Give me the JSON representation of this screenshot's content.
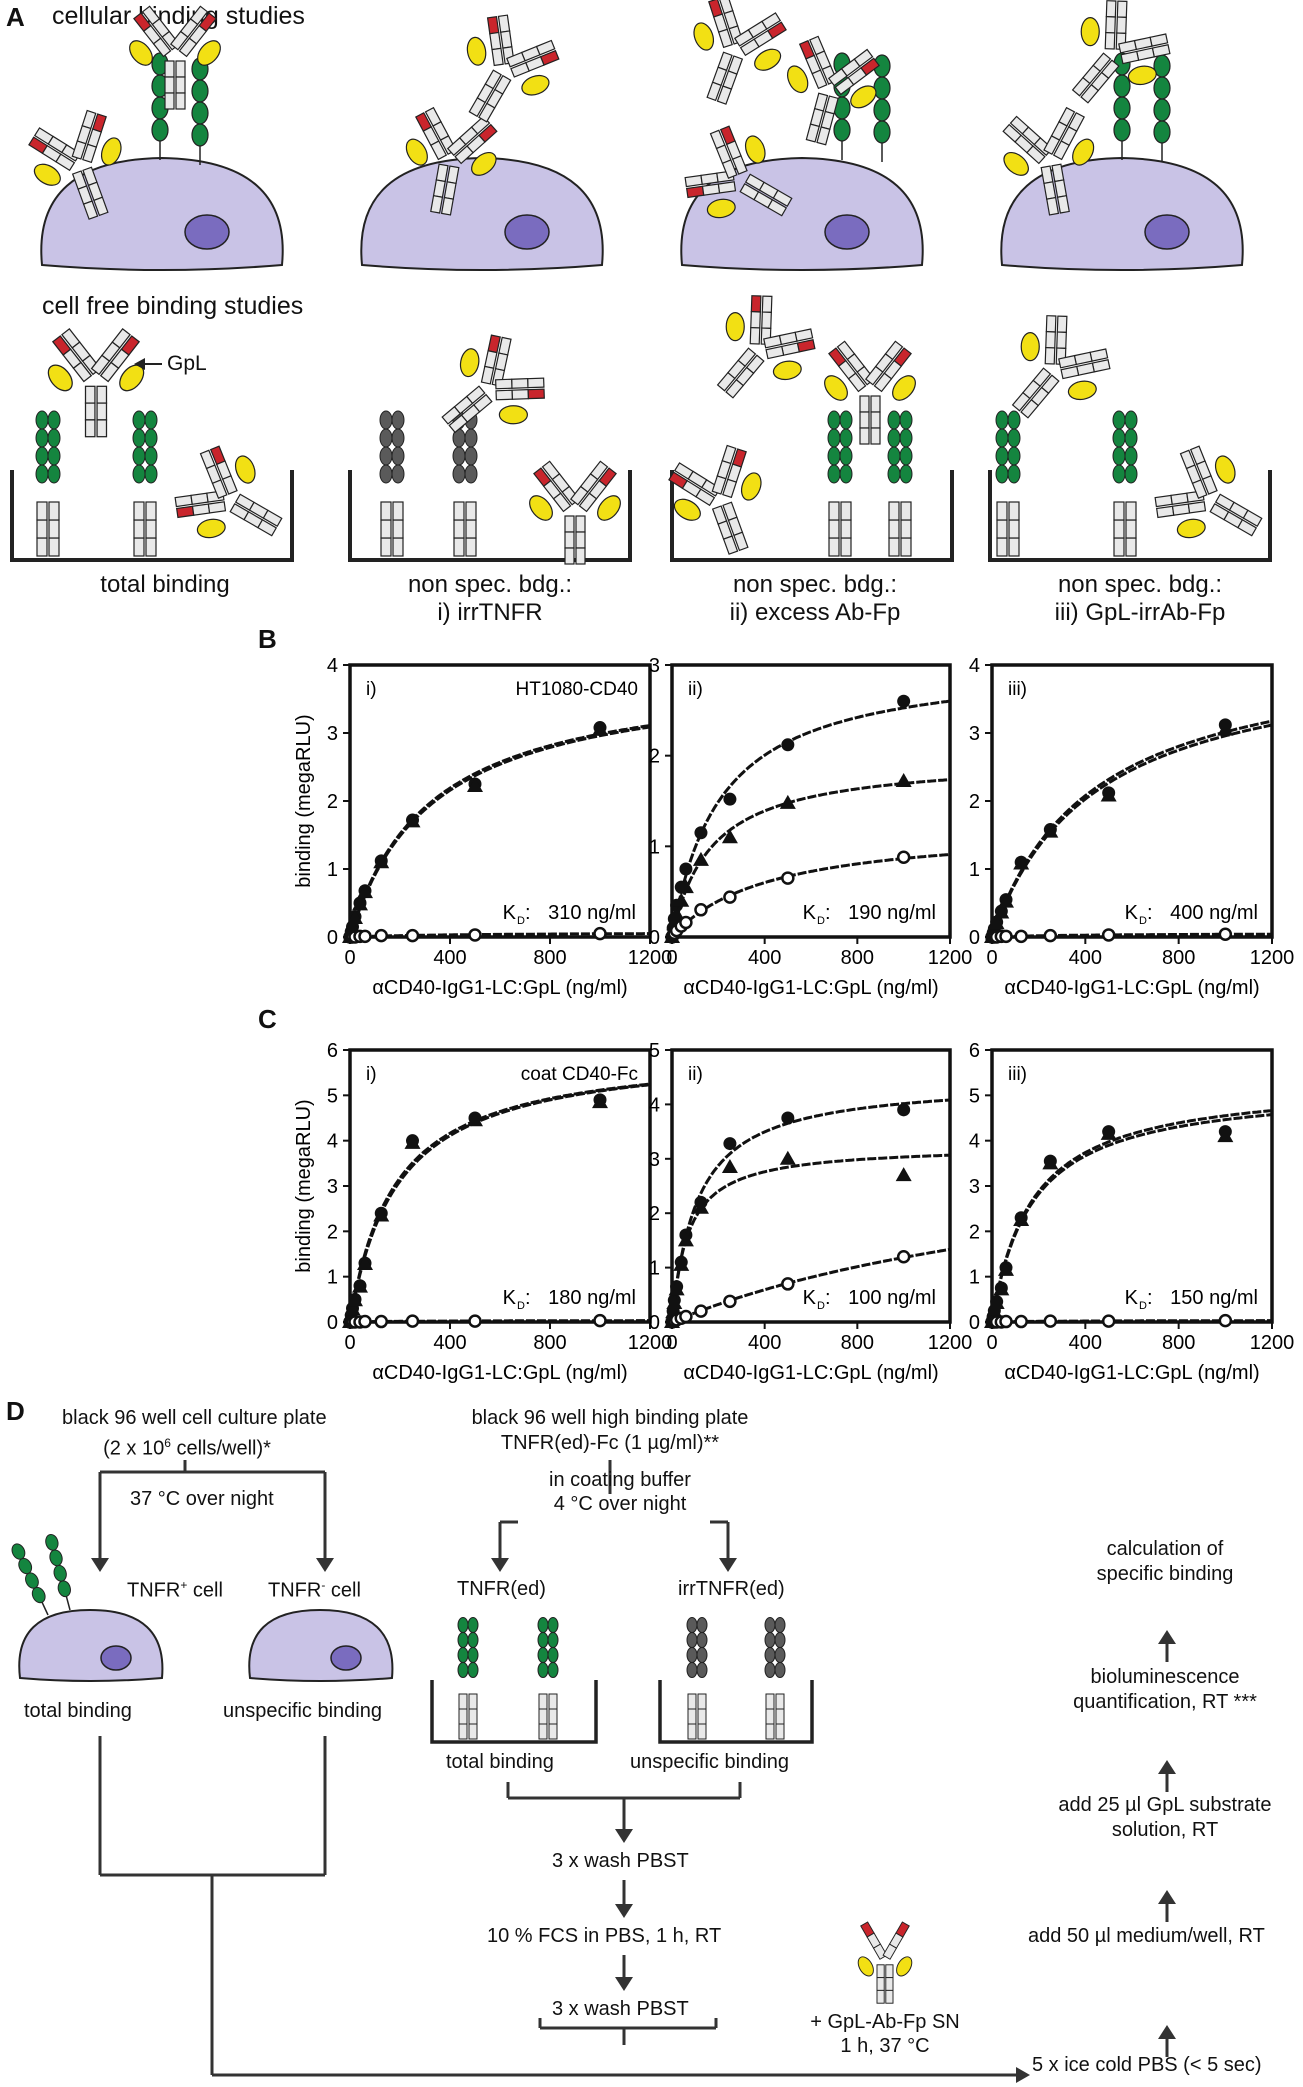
{
  "panelA": {
    "letter": "A",
    "cellular_title": "cellular binding studies",
    "cellfree_title": "cell free binding studies",
    "gpl_label": "GpL",
    "captions": [
      {
        "line1": "total binding",
        "line2": ""
      },
      {
        "line1": "non spec. bdg.:",
        "line2": "i) irrTNFR"
      },
      {
        "line1": "non spec. bdg.:",
        "line2": "ii) excess Ab-Fp"
      },
      {
        "line1": "non spec. bdg.:",
        "line2": "iii) GpL-irrAb-Fp"
      }
    ]
  },
  "panelB": {
    "letter": "B"
  },
  "panelC": {
    "letter": "C"
  },
  "chart_data": [
    {
      "id": "B-i",
      "type": "scatter",
      "panel_label": "i)",
      "annotation": "HT1080-CD40",
      "kd": "310 ng/ml",
      "xlabel": "αCD40-IgG1-LC:GpL (ng/ml)",
      "ylabel": "binding (megaRLU)",
      "xlim": [
        0,
        1200
      ],
      "ylim": [
        0,
        4
      ],
      "xticks": [
        0,
        400,
        800,
        1200
      ],
      "yticks": [
        0,
        1,
        2,
        3,
        4
      ],
      "series": [
        {
          "marker": "filled-circle",
          "x": [
            0,
            5,
            10,
            20,
            40,
            60,
            125,
            250,
            500,
            1000
          ],
          "y": [
            0,
            0.08,
            0.15,
            0.3,
            0.5,
            0.68,
            1.12,
            1.72,
            2.25,
            3.08
          ]
        },
        {
          "marker": "filled-triangle",
          "x": [
            0,
            5,
            10,
            20,
            40,
            60,
            125,
            250,
            500,
            1000
          ],
          "y": [
            0,
            0.07,
            0.14,
            0.28,
            0.48,
            0.66,
            1.1,
            1.7,
            2.22,
            3.05
          ]
        },
        {
          "marker": "open-circle",
          "x": [
            0,
            5,
            10,
            20,
            40,
            60,
            125,
            250,
            500,
            1000
          ],
          "y": [
            0,
            0,
            0,
            0,
            0.01,
            0.01,
            0.02,
            0.02,
            0.03,
            0.05
          ]
        }
      ]
    },
    {
      "id": "B-ii",
      "type": "scatter",
      "panel_label": "ii)",
      "annotation": "",
      "kd": "190 ng/ml",
      "xlabel": "αCD40-IgG1-LC:GpL (ng/ml)",
      "ylabel": "",
      "xlim": [
        0,
        1200
      ],
      "ylim": [
        0,
        3
      ],
      "xticks": [
        0,
        400,
        800,
        1200
      ],
      "yticks": [
        0,
        1,
        2,
        3
      ],
      "series": [
        {
          "marker": "filled-circle",
          "x": [
            0,
            5,
            10,
            20,
            40,
            60,
            125,
            250,
            500,
            1000
          ],
          "y": [
            0,
            0.1,
            0.2,
            0.35,
            0.55,
            0.75,
            1.15,
            1.52,
            2.12,
            2.6
          ]
        },
        {
          "marker": "filled-triangle",
          "x": [
            0,
            5,
            10,
            20,
            40,
            60,
            125,
            250,
            500,
            1000
          ],
          "y": [
            0,
            0.07,
            0.14,
            0.25,
            0.4,
            0.55,
            0.85,
            1.1,
            1.48,
            1.72
          ]
        },
        {
          "marker": "open-circle",
          "x": [
            0,
            5,
            10,
            20,
            40,
            60,
            125,
            250,
            500,
            1000
          ],
          "y": [
            0,
            0.02,
            0.04,
            0.07,
            0.12,
            0.16,
            0.3,
            0.44,
            0.65,
            0.88
          ]
        }
      ]
    },
    {
      "id": "B-iii",
      "type": "scatter",
      "panel_label": "iii)",
      "annotation": "",
      "kd": "400 ng/ml",
      "xlabel": "αCD40-IgG1-LC:GpL (ng/ml)",
      "ylabel": "",
      "xlim": [
        0,
        1200
      ],
      "ylim": [
        0,
        4
      ],
      "xticks": [
        0,
        400,
        800,
        1200
      ],
      "yticks": [
        0,
        1,
        2,
        3,
        4
      ],
      "series": [
        {
          "marker": "filled-circle",
          "x": [
            0,
            5,
            10,
            20,
            40,
            60,
            125,
            250,
            500,
            1000
          ],
          "y": [
            0,
            0.06,
            0.12,
            0.22,
            0.38,
            0.55,
            1.1,
            1.58,
            2.12,
            3.12
          ]
        },
        {
          "marker": "filled-triangle",
          "x": [
            0,
            5,
            10,
            20,
            40,
            60,
            125,
            250,
            500,
            1000
          ],
          "y": [
            0,
            0.05,
            0.11,
            0.2,
            0.36,
            0.52,
            1.08,
            1.55,
            2.08,
            3.05
          ]
        },
        {
          "marker": "open-circle",
          "x": [
            0,
            5,
            10,
            20,
            40,
            60,
            125,
            250,
            500,
            1000
          ],
          "y": [
            0,
            0,
            0,
            0,
            0.01,
            0.01,
            0.01,
            0.02,
            0.03,
            0.04
          ]
        }
      ]
    },
    {
      "id": "C-i",
      "type": "scatter",
      "panel_label": "i)",
      "annotation": "coat CD40-Fc",
      "kd": "180 ng/ml",
      "xlabel": "αCD40-IgG1-LC:GpL (ng/ml)",
      "ylabel": "binding (megaRLU)",
      "xlim": [
        0,
        1200
      ],
      "ylim": [
        0,
        6
      ],
      "xticks": [
        0,
        400,
        800,
        1200
      ],
      "yticks": [
        0,
        1,
        2,
        3,
        4,
        5,
        6
      ],
      "series": [
        {
          "marker": "filled-circle",
          "x": [
            0,
            5,
            10,
            20,
            40,
            60,
            125,
            250,
            500,
            1000
          ],
          "y": [
            0,
            0.15,
            0.3,
            0.5,
            0.8,
            1.3,
            2.4,
            4.0,
            4.5,
            4.9
          ]
        },
        {
          "marker": "filled-triangle",
          "x": [
            0,
            5,
            10,
            20,
            40,
            60,
            125,
            250,
            500,
            1000
          ],
          "y": [
            0,
            0.14,
            0.28,
            0.48,
            0.78,
            1.28,
            2.35,
            3.95,
            4.45,
            4.85
          ]
        },
        {
          "marker": "open-circle",
          "x": [
            0,
            5,
            10,
            20,
            40,
            60,
            125,
            250,
            500,
            1000
          ],
          "y": [
            0,
            0,
            0,
            0,
            0,
            0.01,
            0.01,
            0.02,
            0.02,
            0.03
          ]
        }
      ]
    },
    {
      "id": "C-ii",
      "type": "scatter",
      "panel_label": "ii)",
      "annotation": "",
      "kd": "100 ng/ml",
      "xlabel": "αCD40-IgG1-LC:GpL (ng/ml)",
      "ylabel": "",
      "xlim": [
        0,
        1200
      ],
      "ylim": [
        0,
        5
      ],
      "xticks": [
        0,
        400,
        800,
        1200
      ],
      "yticks": [
        0,
        1,
        2,
        3,
        4,
        5
      ],
      "series": [
        {
          "marker": "filled-circle",
          "x": [
            0,
            5,
            10,
            20,
            40,
            60,
            125,
            250,
            500,
            1000
          ],
          "y": [
            0,
            0.2,
            0.4,
            0.65,
            1.1,
            1.6,
            2.2,
            3.28,
            3.75,
            3.9
          ]
        },
        {
          "marker": "filled-triangle",
          "x": [
            0,
            5,
            10,
            20,
            40,
            60,
            125,
            250,
            500,
            1000
          ],
          "y": [
            0,
            0.18,
            0.35,
            0.6,
            1.05,
            1.5,
            2.1,
            2.85,
            3.0,
            2.7
          ]
        },
        {
          "marker": "open-circle",
          "x": [
            0,
            5,
            10,
            20,
            40,
            60,
            125,
            250,
            500,
            1000
          ],
          "y": [
            0,
            0.01,
            0.02,
            0.04,
            0.07,
            0.1,
            0.2,
            0.38,
            0.7,
            1.2
          ]
        }
      ]
    },
    {
      "id": "C-iii",
      "type": "scatter",
      "panel_label": "iii)",
      "annotation": "",
      "kd": "150 ng/ml",
      "xlabel": "αCD40-IgG1-LC:GpL (ng/ml)",
      "ylabel": "",
      "xlim": [
        0,
        1200
      ],
      "ylim": [
        0,
        6
      ],
      "xticks": [
        0,
        400,
        800,
        1200
      ],
      "yticks": [
        0,
        1,
        2,
        3,
        4,
        5,
        6
      ],
      "series": [
        {
          "marker": "filled-circle",
          "x": [
            0,
            5,
            10,
            20,
            40,
            60,
            125,
            250,
            500,
            1000
          ],
          "y": [
            0,
            0.12,
            0.25,
            0.45,
            0.75,
            1.2,
            2.3,
            3.55,
            4.2,
            4.2
          ]
        },
        {
          "marker": "filled-triangle",
          "x": [
            0,
            5,
            10,
            20,
            40,
            60,
            125,
            250,
            500,
            1000
          ],
          "y": [
            0,
            0.11,
            0.23,
            0.42,
            0.72,
            1.15,
            2.25,
            3.5,
            4.15,
            4.1
          ]
        },
        {
          "marker": "open-circle",
          "x": [
            0,
            5,
            10,
            20,
            40,
            60,
            125,
            250,
            500,
            1000
          ],
          "y": [
            0,
            0,
            0,
            0,
            0,
            0.01,
            0.01,
            0.02,
            0.02,
            0.03
          ]
        }
      ]
    }
  ],
  "panelD": {
    "letter": "D",
    "plate1_l1": "black 96 well cell culture plate",
    "plate1_l2": "(2 x 10",
    "plate1_sup": "6",
    "plate1_l2b": " cells/well)*",
    "step_37": "37 °C over night",
    "cell_pos": "TNFR",
    "cell_pos_sup": "+",
    "cell_pos_tail": " cell",
    "cell_neg": "TNFR",
    "cell_neg_sup": "-",
    "cell_neg_tail": " cell",
    "total_binding": "total binding",
    "unspecific_binding": "unspecific binding",
    "plate2_l1": "black 96 well high binding plate",
    "plate2_l2": "TNFR(ed)-Fc (1 µg/ml)**",
    "coat_l1": "in coating buffer",
    "coat_l2": "4 °C over night",
    "tnfr_ed": "TNFR(ed)",
    "irr_tnfr_ed": "irrTNFR(ed)",
    "total_binding2": "total binding",
    "unspecific_binding2": "unspecific binding",
    "wash1": "3 x wash PBST",
    "fcs": "10 % FCS in PBS, 1 h, RT",
    "wash2": "3 x wash PBST",
    "gpl_sn_l1": "+ GpL-Ab-Fp SN",
    "gpl_sn_l2": "1 h, 37 °C",
    "ice": "5 x ice cold PBS (< 5 sec)",
    "medium": "add 50 µl medium/well, RT",
    "substrate_l1": "add 25 µl GpL substrate",
    "substrate_l2": "solution, RT",
    "biolum_l1": "bioluminescence",
    "biolum_l2": "quantification, RT ***",
    "calc_l1": "calculation of",
    "calc_l2": "specific binding"
  },
  "colors": {
    "cell": "#c9c3e6",
    "nucleus": "#7a6cbf",
    "green": "#14853f",
    "yellow": "#f2e014",
    "red": "#c9252c",
    "pink": "#f0a3a3",
    "grey": "#5a5a5a",
    "receptor": "#e9e9e9"
  }
}
